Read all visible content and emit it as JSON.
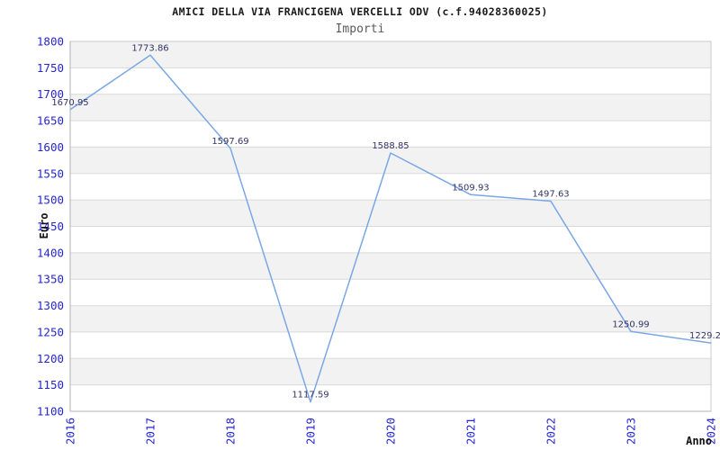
{
  "header": {
    "title": "AMICI DELLA VIA FRANCIGENA VERCELLI ODV (c.f.94028360025)",
    "subtitle": "Importi"
  },
  "chart_data": {
    "type": "line",
    "title": "AMICI DELLA VIA FRANCIGENA VERCELLI ODV (c.f.94028360025)",
    "subtitle": "Importi",
    "xlabel": "Anno",
    "ylabel": "Euro",
    "categories": [
      "2016",
      "2017",
      "2018",
      "2019",
      "2020",
      "2021",
      "2022",
      "2023",
      "2024"
    ],
    "series": [
      {
        "name": "Importi",
        "values": [
          1670.95,
          1773.86,
          1597.69,
          1117.59,
          1588.85,
          1509.93,
          1497.63,
          1250.99,
          1229.2
        ]
      }
    ],
    "point_labels": [
      "1670.95",
      "1773.86",
      "1597.69",
      "1117.59",
      "1588.85",
      "1509.93",
      "1497.63",
      "1250.99",
      "1229.2"
    ],
    "ylim": [
      1100,
      1800
    ],
    "ytick_step": 50,
    "grid": true,
    "banded_background": true,
    "legend": "none",
    "colors": {
      "line": "#7aa7e5",
      "tick_label": "#2626cc",
      "point_label": "#333366",
      "band_fill": "#f2f2f2",
      "grid_line": "#d9d9d9",
      "plot_border": "#cccccc",
      "axis_line": "#b3b3b3",
      "title": "#1a1a1a",
      "subtitle": "#5a5a5a",
      "axis_title": "#111111"
    }
  }
}
